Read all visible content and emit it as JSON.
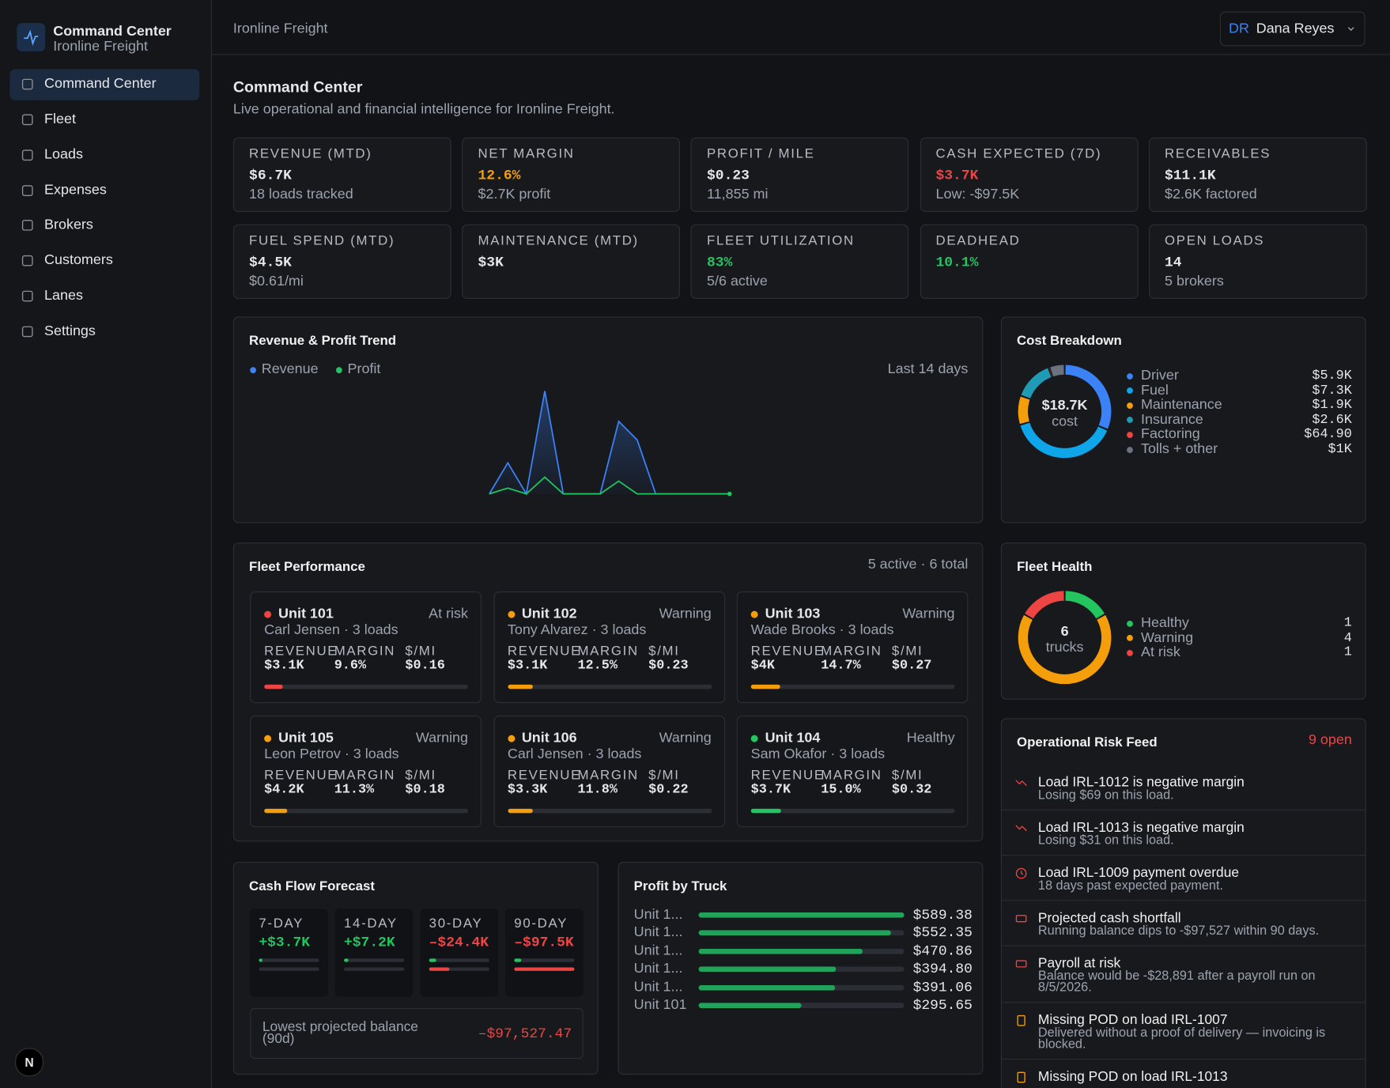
{
  "sidebar": {
    "brand_title": "Command Center",
    "brand_subtitle": "Ironline Freight",
    "nav": [
      "Command Center",
      "Fleet",
      "Loads",
      "Expenses",
      "Brokers",
      "Customers",
      "Lanes",
      "Settings"
    ],
    "active": 0,
    "badge": "N"
  },
  "header": {
    "org": "Ironline Freight",
    "user_initials": "DR",
    "user_name": "Dana Reyes"
  },
  "page": {
    "title": "Command Center",
    "subtitle": "Live operational and financial intelligence for Ironline Freight."
  },
  "kpis": [
    {
      "label": "REVENUE (MTD)",
      "value": "$6.7K",
      "sub": "18 loads tracked"
    },
    {
      "label": "NET MARGIN",
      "value": "12.6%",
      "sub": "$2.7K profit",
      "tone": "warning"
    },
    {
      "label": "PROFIT / MILE",
      "value": "$0.23",
      "sub": "11,855 mi"
    },
    {
      "label": "CASH EXPECTED (7D)",
      "value": "$3.7K",
      "sub": "Low: -$97.5K",
      "tone": "negative"
    },
    {
      "label": "RECEIVABLES",
      "value": "$11.1K",
      "sub": "$2.6K factored"
    },
    {
      "label": "FUEL SPEND (MTD)",
      "value": "$4.5K",
      "sub": "$0.61/mi"
    },
    {
      "label": "MAINTENANCE (MTD)",
      "value": "$3K"
    },
    {
      "label": "FLEET UTILIZATION",
      "value": "83%",
      "sub": "5/6 active",
      "tone": "positive"
    },
    {
      "label": "DEADHEAD",
      "value": "10.1%",
      "tone": "positive"
    },
    {
      "label": "OPEN LOADS",
      "value": 14,
      "sub": "5 brokers"
    }
  ],
  "chart_data": [
    {
      "type": "line",
      "title": "Revenue & Profit Trend",
      "subtitle": "Last 14 days",
      "categories": [
        null,
        null,
        null,
        null,
        null,
        null,
        null,
        null,
        null,
        null,
        null,
        null,
        null,
        null
      ],
      "series": [
        {
          "name": "Revenue",
          "color": "#3b82f6",
          "values": [
            0,
            800,
            0,
            2650,
            0,
            0,
            0,
            1870,
            1390,
            0,
            0,
            0,
            0,
            0
          ]
        },
        {
          "name": "Profit",
          "color": "#22c55e",
          "values": [
            0,
            150,
            0,
            430,
            0,
            0,
            0,
            330,
            0,
            0,
            0,
            0,
            0,
            0
          ]
        }
      ]
    },
    {
      "type": "pie",
      "title": "Cost Breakdown",
      "center_value": "$18.7K",
      "center_label": "cost",
      "categories": [
        "Driver",
        "Fuel",
        "Maintenance",
        "Insurance",
        "Factoring",
        "Tolls + other"
      ],
      "values": [
        5900,
        7300,
        1900,
        2600,
        64.9,
        1000
      ],
      "value_labels": [
        "$5.9K",
        "$7.3K",
        "$1.9K",
        "$2.6K",
        "$64.90",
        "$1K"
      ],
      "colors": [
        "#3b82f6",
        "#0ea5e9",
        "#f59e0b",
        "#1f9bb5",
        "#ef4444",
        "#6b7280"
      ]
    },
    {
      "type": "pie",
      "title": "Fleet Health",
      "center_value": 6,
      "center_label": "trucks",
      "categories": [
        "Healthy",
        "Warning",
        "At risk"
      ],
      "values": [
        1,
        4,
        1
      ],
      "colors": [
        "#22c55e",
        "#f59e0b",
        "#ef4444"
      ]
    },
    {
      "type": "bar",
      "orientation": "horizontal",
      "title": "Profit by Truck",
      "categories": [
        "Unit 1...",
        "Unit 1...",
        "Unit 1...",
        "Unit 1...",
        "Unit 1...",
        "Unit 101"
      ],
      "values": [
        589.38,
        552.35,
        470.86,
        394.8,
        391.06,
        295.65
      ],
      "value_labels": [
        "$589.38",
        "$552.35",
        "$470.86",
        "$394.80",
        "$391.06",
        "$295.65"
      ],
      "color": "#22a35a"
    }
  ],
  "fleet": {
    "title": "Fleet Performance",
    "summary": "5 active · 6 total",
    "metric_labels": [
      "REVENUE",
      "MARGIN",
      "$/MI"
    ],
    "units": [
      {
        "name": "Unit 101",
        "status": "At risk",
        "status_color": "#ef4444",
        "driver": "Carl Jensen · 3 loads",
        "metrics": [
          "$3.1K",
          "9.6%",
          "$0.16"
        ]
      },
      {
        "name": "Unit 102",
        "status": "Warning",
        "status_color": "#f59e0b",
        "driver": "Tony Alvarez · 3 loads",
        "metrics": [
          "$3.1K",
          "12.5%",
          "$0.23"
        ]
      },
      {
        "name": "Unit 103",
        "status": "Warning",
        "status_color": "#f59e0b",
        "driver": "Wade Brooks · 3 loads",
        "metrics": [
          "$4K",
          "14.7%",
          "$0.27"
        ]
      },
      {
        "name": "Unit 105",
        "status": "Warning",
        "status_color": "#f59e0b",
        "driver": "Leon Petrov · 3 loads",
        "metrics": [
          "$4.2K",
          "11.3%",
          "$0.18"
        ]
      },
      {
        "name": "Unit 106",
        "status": "Warning",
        "status_color": "#f59e0b",
        "driver": "Carl Jensen · 3 loads",
        "metrics": [
          "$3.3K",
          "11.8%",
          "$0.22"
        ]
      },
      {
        "name": "Unit 104",
        "status": "Healthy",
        "status_color": "#22c55e",
        "driver": "Sam Okafor · 3 loads",
        "metrics": [
          "$3.7K",
          "15.0%",
          "$0.32"
        ]
      }
    ]
  },
  "cash_flow": {
    "title": "Cash Flow Forecast",
    "periods": [
      {
        "label": "7-DAY",
        "value": "+$3.7K",
        "tone": "positive"
      },
      {
        "label": "14-DAY",
        "value": "+$7.2K",
        "tone": "positive"
      },
      {
        "label": "30-DAY",
        "value": "–$24.4K",
        "tone": "negative"
      },
      {
        "label": "90-DAY",
        "value": "–$97.5K",
        "tone": "negative"
      }
    ],
    "lowest_label": "Lowest projected balance (90d)",
    "lowest_value": "–$97,527.47"
  },
  "risk_feed": {
    "title": "Operational Risk Feed",
    "count": "9 open",
    "items": [
      {
        "title": "Load IRL-1012 is negative margin",
        "detail": "Losing $69 on this load.",
        "icon": "trend-down",
        "severity": "high"
      },
      {
        "title": "Load IRL-1013 is negative margin",
        "detail": "Losing $31 on this load.",
        "icon": "trend-down",
        "severity": "high"
      },
      {
        "title": "Load IRL-1009 payment overdue",
        "detail": "18 days past expected payment.",
        "icon": "clock",
        "severity": "high"
      },
      {
        "title": "Projected cash shortfall",
        "detail": "Running balance dips to -$97,527 within 90 days.",
        "icon": "card",
        "severity": "high"
      },
      {
        "title": "Payroll at risk",
        "detail": "Balance would be -$28,891 after a payroll run on 8/5/2026.",
        "icon": "card",
        "severity": "high"
      },
      {
        "title": "Missing POD on load IRL-1007",
        "detail": "Delivered without a proof of delivery — invoicing is blocked.",
        "icon": "document",
        "severity": "medium"
      },
      {
        "title": "Missing POD on load IRL-1013",
        "icon": "document",
        "severity": "medium"
      }
    ]
  }
}
